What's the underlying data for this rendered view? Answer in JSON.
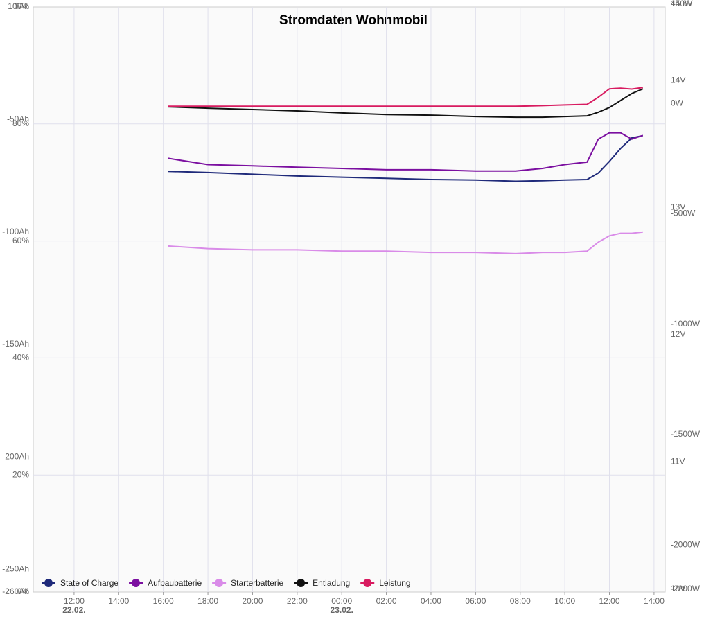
{
  "chart_data": {
    "type": "line",
    "title": "Stromdaten Wohnmobil",
    "x": [
      16.2,
      18,
      20,
      22,
      24,
      26,
      28,
      30,
      31.8,
      33,
      34,
      35,
      35.5,
      36,
      36.5,
      37,
      37.5
    ],
    "xlim": [
      10.17,
      38.5
    ],
    "xticks": [
      {
        "value": 12,
        "label": "12:00"
      },
      {
        "value": 14,
        "label": "14:00"
      },
      {
        "value": 16,
        "label": "16:00"
      },
      {
        "value": 18,
        "label": "18:00"
      },
      {
        "value": 20,
        "label": "20:00"
      },
      {
        "value": 22,
        "label": "22:00"
      },
      {
        "value": 24,
        "label": "00:00"
      },
      {
        "value": 26,
        "label": "02:00"
      },
      {
        "value": 28,
        "label": "04:00"
      },
      {
        "value": 30,
        "label": "06:00"
      },
      {
        "value": 32,
        "label": "08:00"
      },
      {
        "value": 34,
        "label": "10:00"
      },
      {
        "value": 36,
        "label": "12:00"
      },
      {
        "value": 38,
        "label": "14:00"
      }
    ],
    "date_labels": [
      {
        "value": 12,
        "label": "22.02."
      },
      {
        "value": 24,
        "label": "23.02."
      }
    ],
    "axes": [
      {
        "id": "pct",
        "side": "left",
        "lim": [
          0,
          100
        ],
        "grid": true,
        "ticks": [
          {
            "value": 0,
            "label": "0%"
          },
          {
            "value": 20,
            "label": "20%"
          },
          {
            "value": 40,
            "label": "40%"
          },
          {
            "value": 60,
            "label": "60%"
          },
          {
            "value": 80,
            "label": "80%"
          },
          {
            "value": 100,
            "label": "100%"
          }
        ]
      },
      {
        "id": "ah",
        "side": "left",
        "lim": [
          -260,
          0
        ],
        "grid": false,
        "ticks": [
          {
            "value": -260,
            "label": "-260Ah"
          },
          {
            "value": -250,
            "label": "-250Ah"
          },
          {
            "value": -200,
            "label": "-200Ah"
          },
          {
            "value": -150,
            "label": "-150Ah"
          },
          {
            "value": -100,
            "label": "-100Ah"
          },
          {
            "value": -50,
            "label": "-50Ah"
          },
          {
            "value": 0,
            "label": "0Ah"
          }
        ]
      },
      {
        "id": "v",
        "side": "right",
        "lim": [
          10,
          14.6
        ],
        "grid": false,
        "ticks": [
          {
            "value": 10,
            "label": "10V"
          },
          {
            "value": 11,
            "label": "11V"
          },
          {
            "value": 12,
            "label": "12V"
          },
          {
            "value": 13,
            "label": "13V"
          },
          {
            "value": 14,
            "label": "14V"
          },
          {
            "value": 14.6,
            "label": "14.6V"
          }
        ]
      },
      {
        "id": "w",
        "side": "right",
        "lim": [
          -2200,
          450
        ],
        "grid": false,
        "ticks": [
          {
            "value": -2200,
            "label": "-2200W"
          },
          {
            "value": -2000,
            "label": "-2000W"
          },
          {
            "value": -1500,
            "label": "-1500W"
          },
          {
            "value": -1000,
            "label": "-1000W"
          },
          {
            "value": -500,
            "label": "-500W"
          },
          {
            "value": 0,
            "label": "0W"
          },
          {
            "value": 450,
            "label": "450W"
          }
        ]
      }
    ],
    "series": [
      {
        "name": "State of Charge",
        "color": "#1f2a7a",
        "axis": "pct",
        "values": [
          71.9,
          71.7,
          71.4,
          71.1,
          70.9,
          70.7,
          70.5,
          70.4,
          70.2,
          70.3,
          70.4,
          70.5,
          71.6,
          73.6,
          75.8,
          77.6,
          78.0
        ]
      },
      {
        "name": "Aufbaubatterie",
        "color": "#7b0fa0",
        "axis": "v",
        "values": [
          13.41,
          13.36,
          13.35,
          13.34,
          13.33,
          13.32,
          13.32,
          13.31,
          13.31,
          13.33,
          13.36,
          13.38,
          13.56,
          13.61,
          13.61,
          13.56,
          13.59
        ]
      },
      {
        "name": "Starterbatterie",
        "color": "#d98be8",
        "axis": "v",
        "values": [
          12.72,
          12.7,
          12.69,
          12.69,
          12.68,
          12.68,
          12.67,
          12.67,
          12.66,
          12.67,
          12.67,
          12.68,
          12.75,
          12.8,
          12.82,
          12.82,
          12.83
        ]
      },
      {
        "name": "Entladung",
        "color": "#111111",
        "axis": "ah",
        "values": [
          -44.4,
          -45.0,
          -45.6,
          -46.2,
          -47.1,
          -47.8,
          -48.1,
          -48.7,
          -49.0,
          -49.0,
          -48.7,
          -48.4,
          -46.8,
          -44.7,
          -41.6,
          -38.5,
          -36.4
        ]
      },
      {
        "name": "Leistung",
        "color": "#d81b60",
        "axis": "w",
        "values": [
          0,
          0,
          0,
          0,
          0,
          0,
          0,
          0,
          0,
          3,
          6,
          9,
          41,
          79,
          82,
          78,
          85
        ]
      }
    ]
  }
}
